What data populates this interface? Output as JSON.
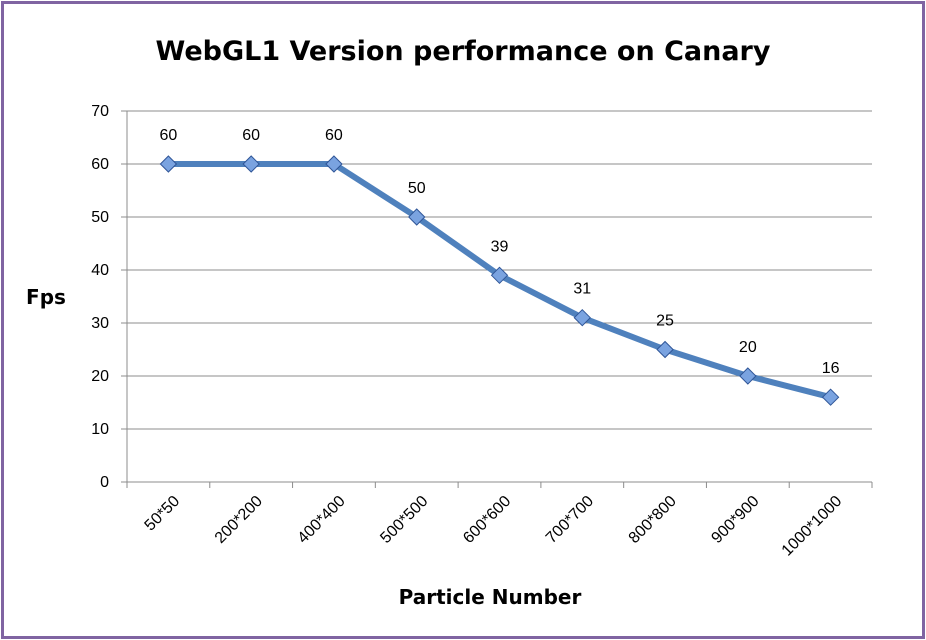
{
  "chart_data": {
    "type": "line",
    "title": "WebGL1 Version performance on Canary",
    "xlabel": "Particle Number",
    "ylabel": "Fps",
    "categories": [
      "50*50",
      "200*200",
      "400*400",
      "500*500",
      "600*600",
      "700*700",
      "800*800",
      "900*900",
      "1000*1000"
    ],
    "values": [
      60,
      60,
      60,
      50,
      39,
      31,
      25,
      20,
      16
    ],
    "ylim": [
      0,
      70
    ],
    "yticks": [
      0,
      10,
      20,
      30,
      40,
      50,
      60,
      70
    ],
    "grid": true,
    "legend": "none",
    "data_labels": true,
    "colors": {
      "line": "#4f81bd",
      "marker": "#7aa3e0",
      "frame": "#8064a2"
    }
  }
}
